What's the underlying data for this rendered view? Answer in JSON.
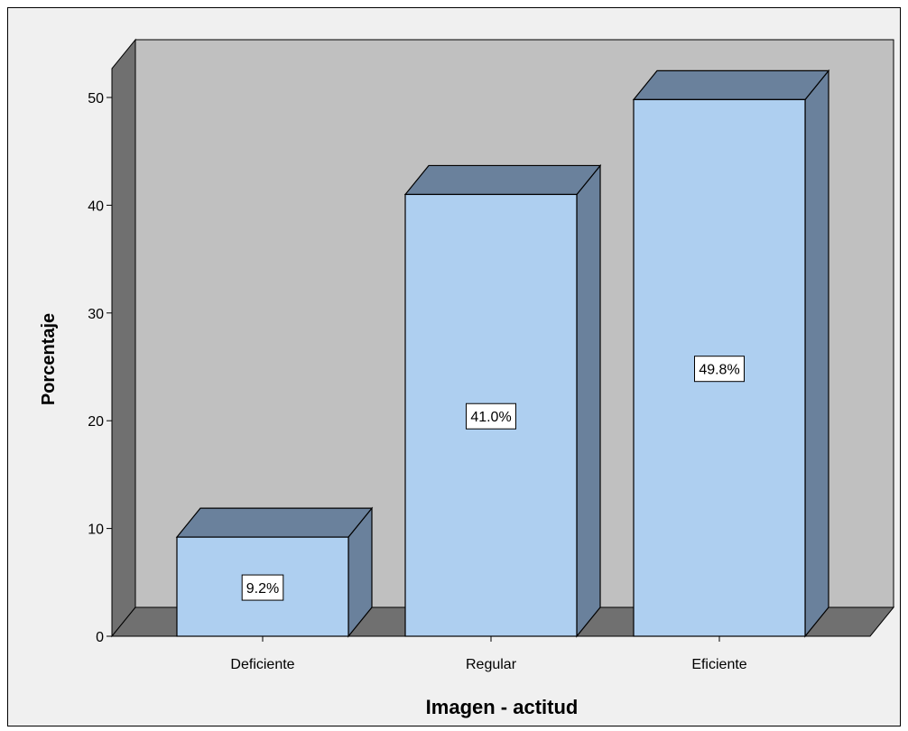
{
  "chart_data": {
    "type": "bar",
    "style": "3d",
    "categories": [
      "Deficiente",
      "Regular",
      "Eficiente"
    ],
    "values": [
      9.2,
      41.0,
      49.8
    ],
    "data_labels": [
      "9.2%",
      "41.0%",
      "49.8%"
    ],
    "xlabel": "Imagen - actitud",
    "ylabel": "Porcentaje",
    "ylim": [
      0,
      50
    ],
    "yticks": [
      "0",
      "10",
      "20",
      "30",
      "40",
      "50"
    ],
    "grid": false,
    "legend": "none"
  },
  "colors": {
    "background": "#f0f0f0",
    "wall": "#c0c0c0",
    "floor": "#707070",
    "bar_front": "#aecff0",
    "bar_top": "#6a819c",
    "bar_side": "#6a819c",
    "border": "#000000"
  }
}
